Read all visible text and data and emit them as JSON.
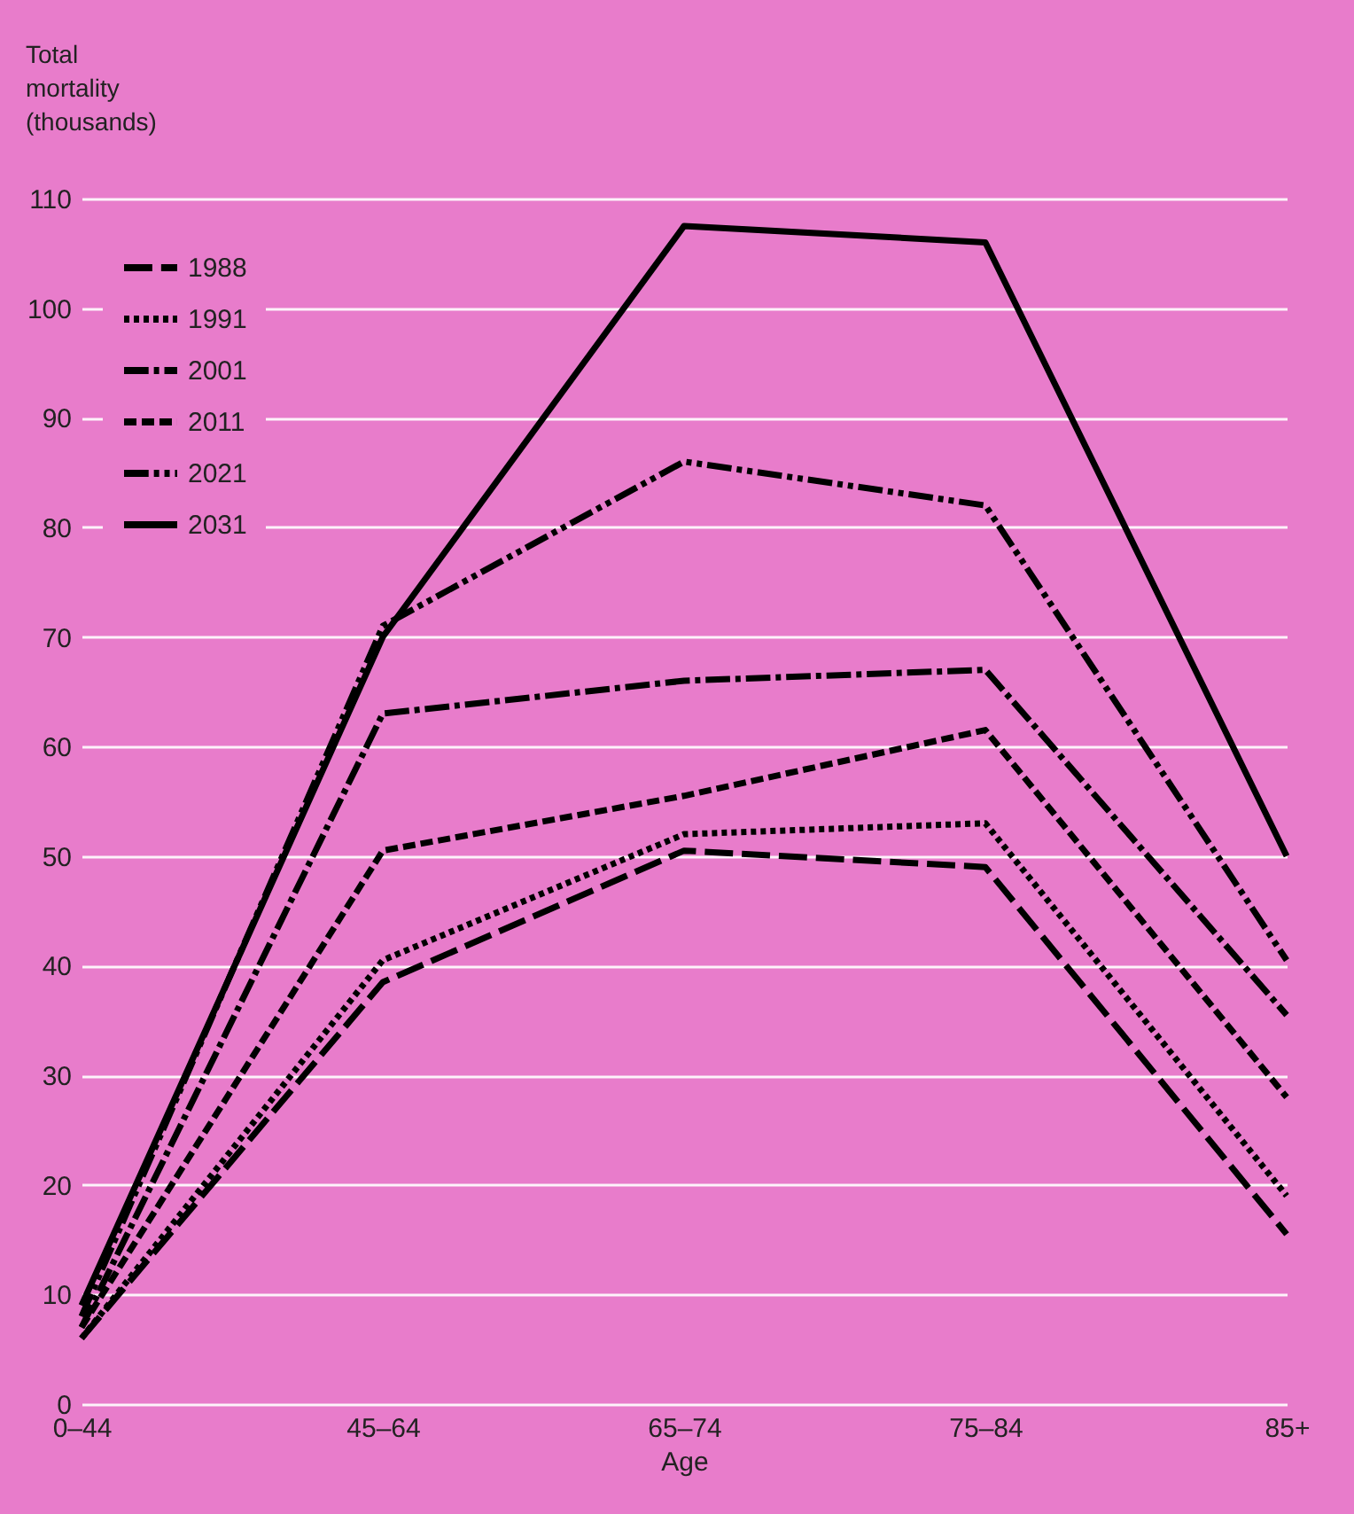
{
  "chart_data": {
    "type": "line",
    "xlabel": "Age",
    "ylabel": "Total mortality (thousands)",
    "categories": [
      "0–44",
      "45–64",
      "65–74",
      "75–84",
      "85+"
    ],
    "ylim": [
      0,
      110
    ],
    "yticks": [
      0,
      10,
      20,
      30,
      40,
      50,
      60,
      70,
      80,
      90,
      100,
      110
    ],
    "grid": "y",
    "legend": "top left",
    "series": [
      {
        "name": "1988",
        "color": "#000000",
        "line_style": "longdash",
        "values": [
          6,
          38.5,
          50.5,
          49,
          15.5
        ]
      },
      {
        "name": "1991",
        "color": "#000000",
        "line_style": "dotted",
        "values": [
          6,
          40.5,
          52,
          53,
          19
        ]
      },
      {
        "name": "2001",
        "color": "#000000",
        "line_style": "dashdot",
        "values": [
          7,
          63,
          66,
          67,
          35.5
        ]
      },
      {
        "name": "2011",
        "color": "#000000",
        "line_style": "dashed",
        "values": [
          7,
          50.5,
          55.5,
          61.5,
          28
        ]
      },
      {
        "name": "2021",
        "color": "#000000",
        "line_style": "dashdotdot",
        "values": [
          8,
          71,
          86,
          82,
          40.5
        ]
      },
      {
        "name": "2031",
        "color": "#000000",
        "line_style": "solid",
        "values": [
          9,
          70,
          107.5,
          106,
          50
        ]
      }
    ]
  }
}
